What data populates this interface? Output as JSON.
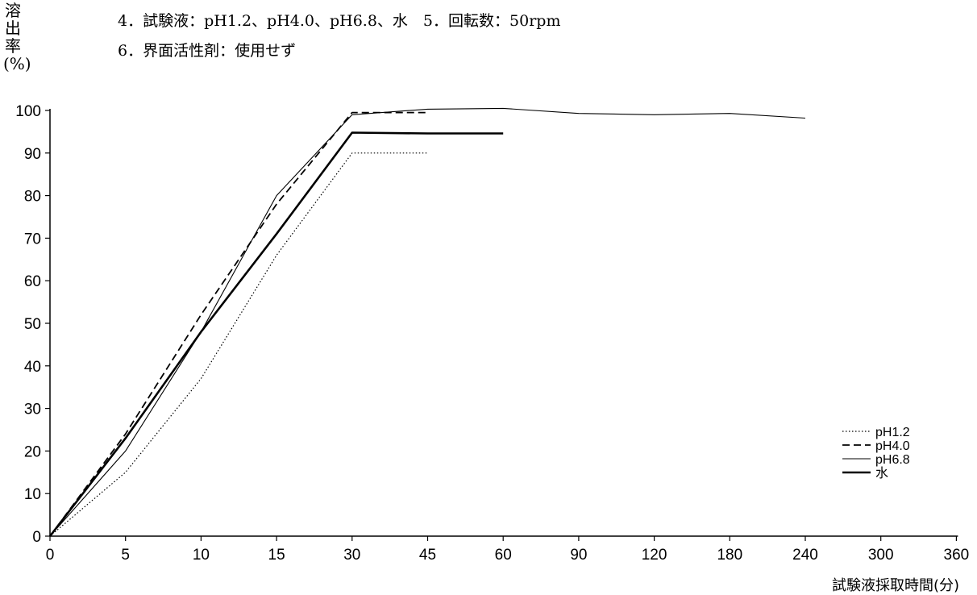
{
  "conditions": {
    "line1": "4．試験液：pH1.2、pH4.0、pH6.8、水　5．回転数：50rpm",
    "line2": "6．界面活性剤：使用せず"
  },
  "chart_data": {
    "type": "line",
    "title": "",
    "ylabel": "溶出率(%)",
    "ylabel_chars": [
      "溶",
      "出",
      "率",
      "(%)"
    ],
    "xlabel": "試験液採取時間(分)",
    "x_ticks": [
      0,
      5,
      10,
      15,
      30,
      45,
      60,
      90,
      120,
      180,
      240,
      300,
      360
    ],
    "y_ticks": [
      0,
      10,
      20,
      30,
      40,
      50,
      60,
      70,
      80,
      90,
      100
    ],
    "ylim": [
      0,
      100
    ],
    "x_scale": "categorical (non-uniform time points, evenly spaced)",
    "legend_position": "bottom-right",
    "grid": false,
    "series": [
      {
        "name": "pH1.2",
        "style": "dotted",
        "color": "#000000",
        "x": [
          0,
          5,
          10,
          15,
          30,
          45
        ],
        "values": [
          0,
          15,
          37,
          66,
          90,
          90
        ]
      },
      {
        "name": "pH4.0",
        "style": "dashed",
        "color": "#000000",
        "x": [
          0,
          5,
          10,
          15,
          30,
          45
        ],
        "values": [
          0,
          24,
          52,
          78,
          99.5,
          99.5
        ]
      },
      {
        "name": "pH6.8",
        "style": "thin",
        "color": "#000000",
        "x": [
          0,
          5,
          10,
          15,
          30,
          45,
          60,
          90,
          120,
          180,
          240
        ],
        "values": [
          0,
          20,
          48,
          80,
          99,
          100.3,
          100.5,
          99.3,
          99,
          99.3,
          98.2
        ]
      },
      {
        "name": "水",
        "style": "thick",
        "color": "#000000",
        "x": [
          0,
          5,
          10,
          15,
          30,
          45,
          60
        ],
        "values": [
          0,
          23,
          48,
          71,
          94.8,
          94.6,
          94.6
        ]
      }
    ]
  }
}
